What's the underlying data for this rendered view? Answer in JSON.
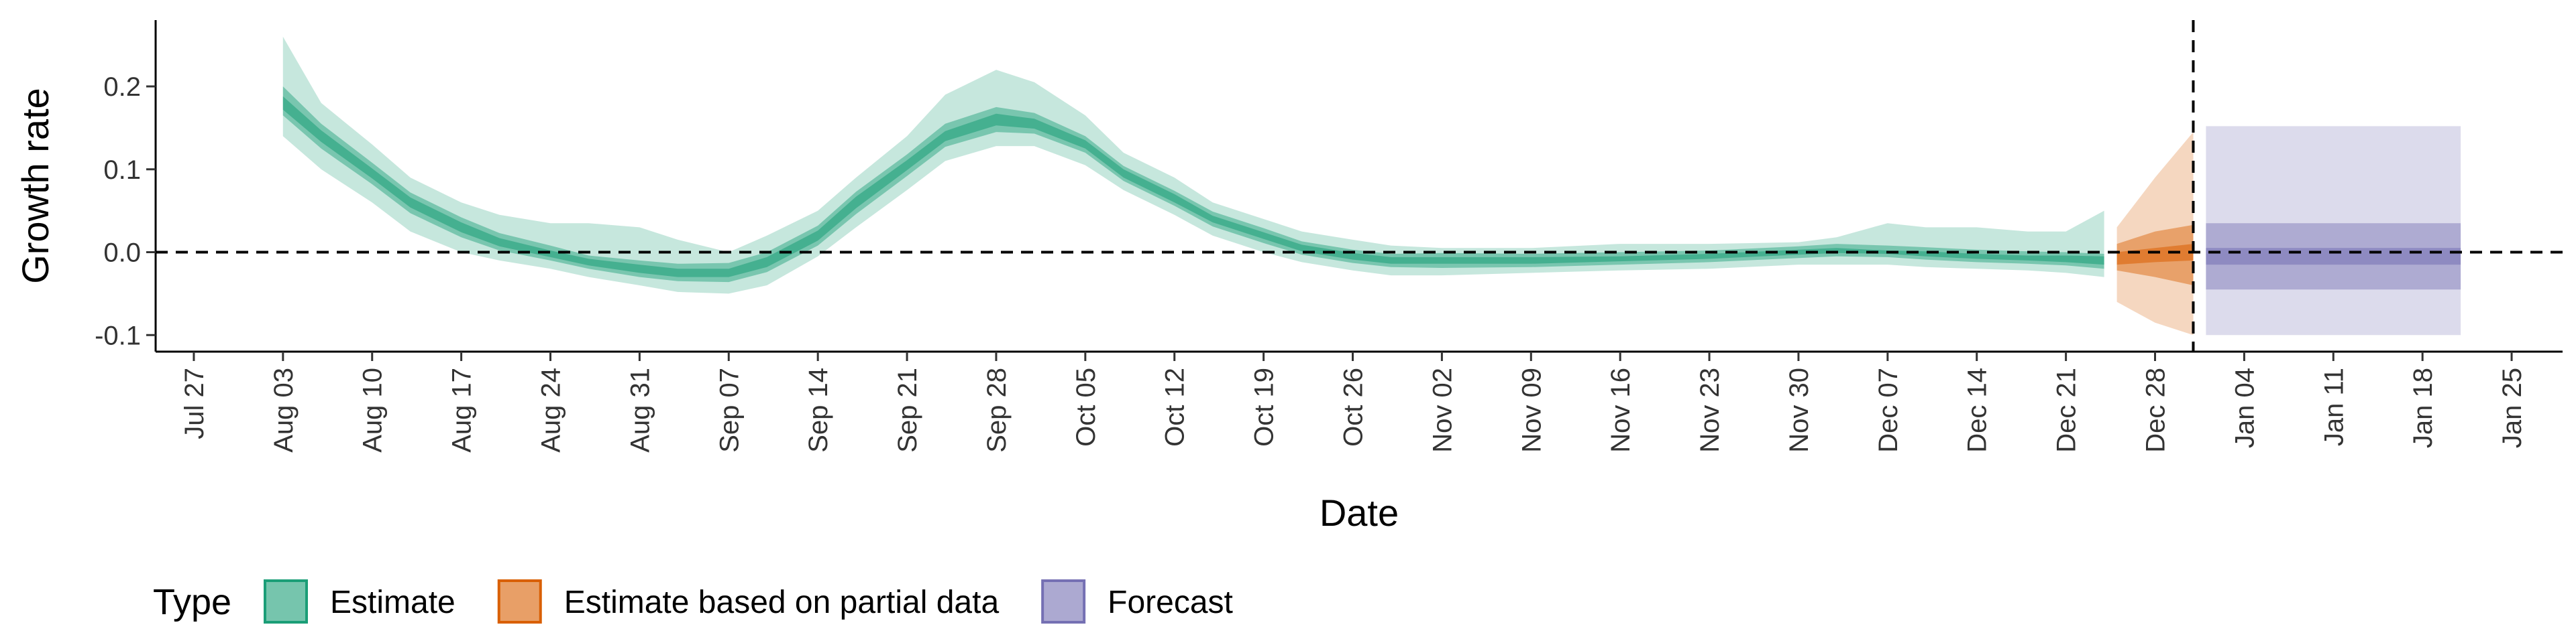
{
  "chart_data": {
    "type": "area",
    "title": "",
    "xlabel": "Date",
    "ylabel": "Growth rate",
    "x_axis_kind": "date",
    "xlim": [
      "2020-07-24",
      "2021-01-29"
    ],
    "ylim": [
      -0.12,
      0.28
    ],
    "yticks": [
      -0.1,
      0.0,
      0.1,
      0.2
    ],
    "ytick_labels": [
      "-0.1",
      "0.0",
      "0.1",
      "0.2"
    ],
    "xticks": [
      "2020-07-27",
      "2020-08-03",
      "2020-08-10",
      "2020-08-17",
      "2020-08-24",
      "2020-08-31",
      "2020-09-07",
      "2020-09-14",
      "2020-09-21",
      "2020-09-28",
      "2020-10-05",
      "2020-10-12",
      "2020-10-19",
      "2020-10-26",
      "2020-11-02",
      "2020-11-09",
      "2020-11-16",
      "2020-11-23",
      "2020-11-30",
      "2020-12-07",
      "2020-12-14",
      "2020-12-21",
      "2020-12-28",
      "2021-01-04",
      "2021-01-11",
      "2021-01-18",
      "2021-01-25"
    ],
    "xtick_labels": [
      "Jul 27",
      "Aug 03",
      "Aug 10",
      "Aug 17",
      "Aug 24",
      "Aug 31",
      "Sep 07",
      "Sep 14",
      "Sep 21",
      "Sep 28",
      "Oct 05",
      "Oct 12",
      "Oct 19",
      "Oct 26",
      "Nov 02",
      "Nov 09",
      "Nov 16",
      "Nov 23",
      "Nov 30",
      "Dec 07",
      "Dec 14",
      "Dec 21",
      "Dec 28",
      "Jan 04",
      "Jan 11",
      "Jan 18",
      "Jan 25"
    ],
    "hline_y": 0,
    "vline_x": "2020-12-31",
    "grid": false,
    "legend": {
      "title": "Type",
      "position": "bottom",
      "entries": [
        {
          "label": "Estimate",
          "color": "#1b9e77"
        },
        {
          "label": "Estimate based on partial data",
          "color": "#d95f02"
        },
        {
          "label": "Forecast",
          "color": "#7570b3"
        }
      ]
    },
    "series": [
      {
        "type_key": "Estimate",
        "color": "#1b9e77",
        "x": [
          "2020-08-03",
          "2020-08-06",
          "2020-08-10",
          "2020-08-13",
          "2020-08-17",
          "2020-08-20",
          "2020-08-24",
          "2020-08-27",
          "2020-08-31",
          "2020-09-03",
          "2020-09-07",
          "2020-09-10",
          "2020-09-14",
          "2020-09-17",
          "2020-09-21",
          "2020-09-24",
          "2020-09-28",
          "2020-10-01",
          "2020-10-05",
          "2020-10-08",
          "2020-10-12",
          "2020-10-15",
          "2020-10-19",
          "2020-10-22",
          "2020-10-26",
          "2020-10-29",
          "2020-11-02",
          "2020-11-09",
          "2020-11-16",
          "2020-11-23",
          "2020-11-30",
          "2020-12-03",
          "2020-12-07",
          "2020-12-10",
          "2020-12-14",
          "2020-12-18",
          "2020-12-21",
          "2020-12-24"
        ],
        "median": [
          0.18,
          0.14,
          0.095,
          0.06,
          0.03,
          0.012,
          -0.002,
          -0.012,
          -0.02,
          -0.025,
          -0.025,
          -0.012,
          0.02,
          0.06,
          0.105,
          0.14,
          0.16,
          0.155,
          0.13,
          0.095,
          0.065,
          0.04,
          0.02,
          0.005,
          -0.005,
          -0.01,
          -0.01,
          -0.01,
          -0.008,
          -0.005,
          0.0,
          0.002,
          0.0,
          -0.002,
          -0.005,
          -0.007,
          -0.008,
          -0.01
        ],
        "lower_90": [
          0.14,
          0.1,
          0.06,
          0.025,
          0.0,
          -0.01,
          -0.02,
          -0.03,
          -0.04,
          -0.048,
          -0.05,
          -0.04,
          -0.005,
          0.03,
          0.075,
          0.11,
          0.128,
          0.128,
          0.105,
          0.075,
          0.045,
          0.02,
          0.0,
          -0.012,
          -0.022,
          -0.028,
          -0.028,
          -0.025,
          -0.022,
          -0.02,
          -0.015,
          -0.015,
          -0.015,
          -0.018,
          -0.02,
          -0.022,
          -0.025,
          -0.03
        ],
        "upper_90": [
          0.26,
          0.18,
          0.13,
          0.09,
          0.06,
          0.045,
          0.035,
          0.035,
          0.03,
          0.015,
          0.0,
          0.02,
          0.05,
          0.09,
          0.14,
          0.19,
          0.22,
          0.205,
          0.165,
          0.12,
          0.09,
          0.06,
          0.04,
          0.025,
          0.015,
          0.008,
          0.005,
          0.005,
          0.01,
          0.01,
          0.012,
          0.018,
          0.035,
          0.03,
          0.03,
          0.025,
          0.025,
          0.05
        ],
        "lower_50": [
          0.165,
          0.125,
          0.082,
          0.047,
          0.018,
          0.002,
          -0.01,
          -0.02,
          -0.03,
          -0.035,
          -0.036,
          -0.024,
          0.008,
          0.046,
          0.092,
          0.127,
          0.145,
          0.143,
          0.12,
          0.086,
          0.056,
          0.031,
          0.011,
          -0.003,
          -0.013,
          -0.018,
          -0.019,
          -0.018,
          -0.015,
          -0.012,
          -0.007,
          -0.005,
          -0.006,
          -0.009,
          -0.012,
          -0.014,
          -0.016,
          -0.02
        ],
        "upper_50": [
          0.2,
          0.155,
          0.108,
          0.072,
          0.042,
          0.023,
          0.008,
          -0.004,
          -0.01,
          -0.014,
          -0.013,
          0.0,
          0.032,
          0.073,
          0.118,
          0.155,
          0.175,
          0.168,
          0.14,
          0.104,
          0.074,
          0.049,
          0.029,
          0.013,
          0.003,
          -0.002,
          -0.001,
          -0.002,
          0.0,
          0.002,
          0.007,
          0.01,
          0.008,
          0.006,
          0.003,
          0.001,
          0.0,
          -0.002
        ],
        "lower_20": [
          0.172,
          0.133,
          0.089,
          0.054,
          0.024,
          0.007,
          -0.006,
          -0.016,
          -0.025,
          -0.03,
          -0.03,
          -0.018,
          0.014,
          0.053,
          0.099,
          0.134,
          0.153,
          0.149,
          0.125,
          0.09,
          0.06,
          0.036,
          0.016,
          0.001,
          -0.009,
          -0.014,
          -0.014,
          -0.014,
          -0.011,
          -0.008,
          -0.003,
          -0.001,
          -0.002,
          -0.005,
          -0.008,
          -0.01,
          -0.012,
          -0.015
        ],
        "upper_20": [
          0.188,
          0.147,
          0.101,
          0.066,
          0.036,
          0.017,
          0.002,
          -0.008,
          -0.015,
          -0.02,
          -0.02,
          -0.006,
          0.026,
          0.067,
          0.111,
          0.146,
          0.167,
          0.161,
          0.135,
          0.1,
          0.07,
          0.044,
          0.024,
          0.009,
          -0.001,
          -0.006,
          -0.006,
          -0.006,
          -0.005,
          -0.002,
          0.003,
          0.005,
          0.002,
          0.001,
          -0.002,
          -0.004,
          -0.004,
          -0.005
        ]
      },
      {
        "type_key": "Estimate based on partial data",
        "color": "#d95f02",
        "x": [
          "2020-12-25",
          "2020-12-28",
          "2020-12-31"
        ],
        "median": [
          -0.01,
          -0.005,
          0.0
        ],
        "lower_90": [
          -0.06,
          -0.085,
          -0.1
        ],
        "upper_90": [
          0.03,
          0.09,
          0.145
        ],
        "lower_50": [
          -0.022,
          -0.03,
          -0.04
        ],
        "upper_50": [
          0.01,
          0.025,
          0.033
        ],
        "lower_20": [
          -0.015,
          -0.012,
          -0.01
        ],
        "upper_20": [
          0.0,
          0.005,
          0.01
        ]
      },
      {
        "type_key": "Forecast",
        "color": "#7570b3",
        "x": [
          "2021-01-01",
          "2021-01-21"
        ],
        "median": [
          -0.005,
          -0.005
        ],
        "lower_90": [
          -0.1,
          -0.1
        ],
        "upper_90": [
          0.152,
          0.152
        ],
        "lower_50": [
          -0.045,
          -0.045
        ],
        "upper_50": [
          0.035,
          0.035
        ],
        "lower_20": [
          -0.015,
          -0.015
        ],
        "upper_20": [
          0.005,
          0.005
        ]
      }
    ]
  }
}
